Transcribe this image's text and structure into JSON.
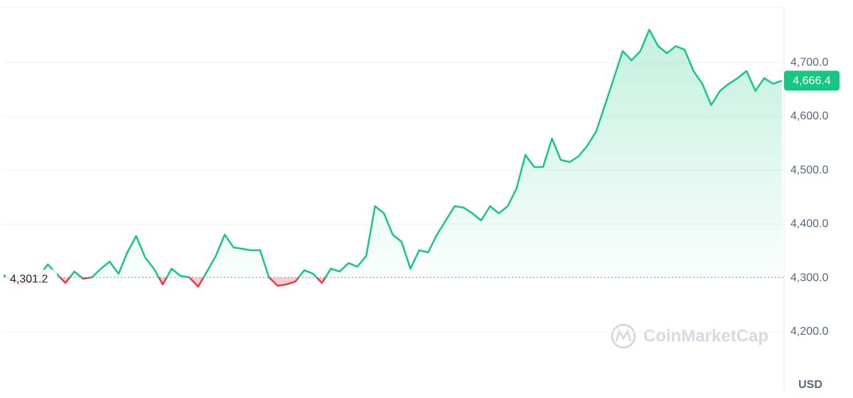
{
  "chart_data": {
    "type": "line",
    "values": [
      4305.3,
      4294.7,
      4288.1,
      4290.8,
      4304.0,
      4325.1,
      4307.9,
      4290.8,
      4311.9,
      4298.7,
      4301.3,
      4317.2,
      4330.4,
      4307.9,
      4347.6,
      4377.9,
      4338.3,
      4317.2,
      4288.1,
      4317.2,
      4304.0,
      4301.3,
      4284.1,
      4311.9,
      4341.0,
      4380.6,
      4356.8,
      4354.2,
      4351.5,
      4351.5,
      4301.3,
      4285.5,
      4288.1,
      4293.4,
      4314.5,
      4307.9,
      4290.8,
      4317.2,
      4311.9,
      4327.7,
      4321.1,
      4341.0,
      4433.4,
      4420.2,
      4380.6,
      4367.4,
      4317.2,
      4351.5,
      4347.6,
      4380.6,
      4407.0,
      4433.4,
      4430.8,
      4420.2,
      4407.0,
      4433.4,
      4420.2,
      4433.4,
      4466.4,
      4528.5,
      4506.1,
      4506.1,
      4558.9,
      4519.3,
      4515.3,
      4525.9,
      4545.7,
      4572.1,
      4621.0,
      4671.2,
      4721.4,
      4704.2,
      4721.4,
      4761.0,
      4730.6,
      4717.4,
      4730.6,
      4724.0,
      4684.4,
      4660.6,
      4621.0,
      4647.4,
      4660.6,
      4671.2,
      4684.4,
      4647.4,
      4671.2,
      4660.6,
      4666.4
    ],
    "up_color": "#16c784",
    "down_color": "#ea3943",
    "baseline": {
      "value": 4301.2,
      "label": "4,301.2"
    },
    "current_price": {
      "value": 4666.4,
      "label": "4,666.4"
    },
    "ylim": [
      4093,
      4803
    ],
    "yticks": [
      {
        "value": 4200,
        "label": "4,200.0"
      },
      {
        "value": 4300,
        "label": "4,300.0"
      },
      {
        "value": 4400,
        "label": "4,400.0"
      },
      {
        "value": 4500,
        "label": "4,500.0"
      },
      {
        "value": 4600,
        "label": "4,600.0"
      },
      {
        "value": 4700,
        "label": "4,700.0"
      }
    ],
    "grid": true,
    "y_unit": "USD",
    "watermark": "CoinMarketCap"
  }
}
